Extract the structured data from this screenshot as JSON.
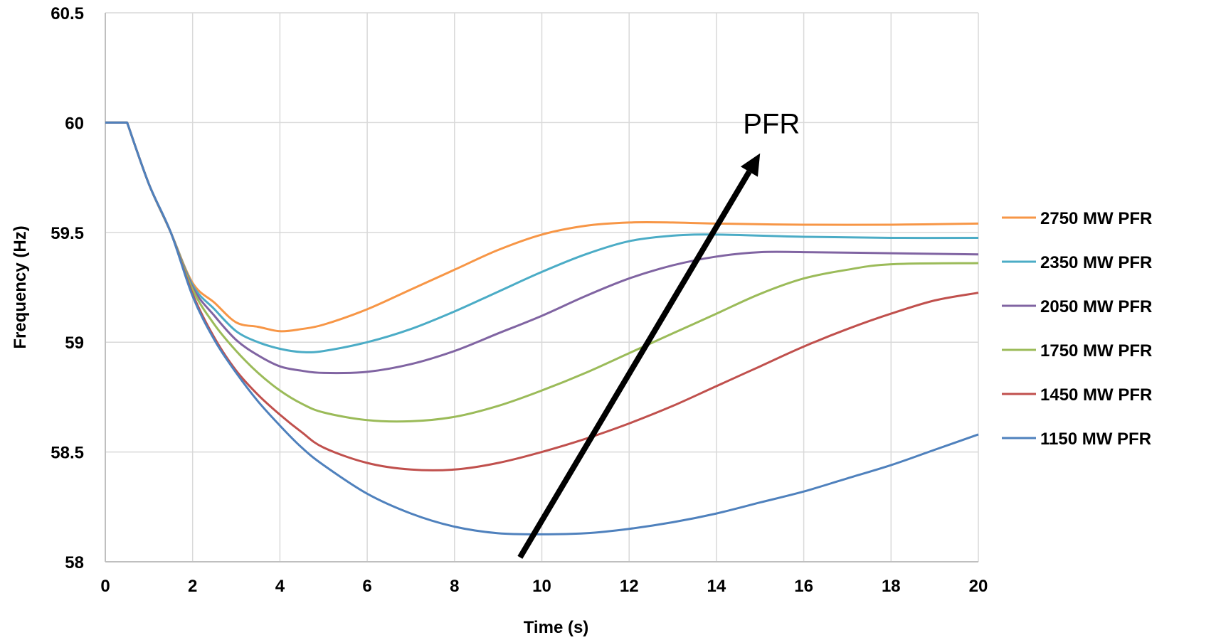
{
  "chart_data": {
    "type": "line",
    "title": "",
    "xlabel": "Time (s)",
    "ylabel": "Frequency (Hz)",
    "xlim": [
      0,
      20
    ],
    "ylim": [
      58,
      60.5
    ],
    "x_ticks": [
      "0",
      "2",
      "4",
      "6",
      "8",
      "10",
      "12",
      "14",
      "16",
      "18",
      "20"
    ],
    "y_ticks": [
      "58",
      "58.5",
      "59",
      "59.5",
      "60",
      "60.5"
    ],
    "grid": true,
    "legend_position": "right",
    "annotation": {
      "text": "PFR",
      "arrow_from": [
        9.5,
        58.02
      ],
      "arrow_to": [
        15.0,
        59.86
      ]
    },
    "series": [
      {
        "name": "2750 MW PFR",
        "color": "#F79646",
        "x": [
          0,
          0.5,
          1,
          1.5,
          2,
          2.5,
          3,
          3.5,
          4,
          4.5,
          5,
          6,
          7,
          8,
          9,
          10,
          11,
          12,
          13,
          14,
          16,
          18,
          20
        ],
        "y": [
          60,
          60,
          59.72,
          59.5,
          59.27,
          59.18,
          59.09,
          59.07,
          59.05,
          59.06,
          59.08,
          59.15,
          59.24,
          59.33,
          59.42,
          59.49,
          59.53,
          59.545,
          59.545,
          59.54,
          59.535,
          59.535,
          59.54
        ]
      },
      {
        "name": "2350 MW PFR",
        "color": "#4BACC6",
        "x": [
          0,
          0.5,
          1,
          1.5,
          2,
          2.5,
          3,
          3.5,
          4,
          4.5,
          5,
          6,
          7,
          8,
          9,
          10,
          11,
          12,
          13,
          14,
          16,
          18,
          20
        ],
        "y": [
          60,
          60,
          59.72,
          59.5,
          59.26,
          59.15,
          59.05,
          59.0,
          58.97,
          58.955,
          58.96,
          59.0,
          59.06,
          59.14,
          59.23,
          59.32,
          59.4,
          59.46,
          59.485,
          59.49,
          59.48,
          59.475,
          59.475
        ]
      },
      {
        "name": "2050 MW PFR",
        "color": "#8064A2",
        "x": [
          0,
          0.5,
          1,
          1.5,
          2,
          2.5,
          3,
          3.5,
          4,
          4.5,
          5,
          6,
          7,
          8,
          9,
          10,
          11,
          12,
          13,
          14,
          15,
          16,
          18,
          20
        ],
        "y": [
          60,
          60,
          59.72,
          59.5,
          59.25,
          59.12,
          59.01,
          58.94,
          58.89,
          58.87,
          58.86,
          58.865,
          58.9,
          58.96,
          59.04,
          59.12,
          59.21,
          59.29,
          59.35,
          59.39,
          59.41,
          59.41,
          59.405,
          59.4
        ]
      },
      {
        "name": "1750 MW PFR",
        "color": "#9BBB59",
        "x": [
          0,
          0.5,
          1,
          1.5,
          2,
          2.5,
          3,
          3.5,
          4,
          4.5,
          5,
          6,
          7,
          8,
          9,
          10,
          11,
          12,
          13,
          14,
          15,
          16,
          17,
          18,
          20
        ],
        "y": [
          60,
          60,
          59.72,
          59.5,
          59.24,
          59.08,
          58.96,
          58.86,
          58.78,
          58.72,
          58.68,
          58.645,
          58.64,
          58.66,
          58.71,
          58.78,
          58.86,
          58.95,
          59.04,
          59.13,
          59.22,
          59.29,
          59.33,
          59.355,
          59.36
        ]
      },
      {
        "name": "1450 MW PFR",
        "color": "#C0504D",
        "x": [
          0,
          0.5,
          1,
          1.5,
          2,
          2.5,
          3,
          3.5,
          4,
          4.5,
          5,
          6,
          7,
          8,
          9,
          10,
          11,
          12,
          13,
          14,
          15,
          16,
          17,
          18,
          19,
          20
        ],
        "y": [
          60,
          60,
          59.72,
          59.5,
          59.22,
          59.02,
          58.87,
          58.76,
          58.67,
          58.59,
          58.52,
          58.45,
          58.42,
          58.42,
          58.45,
          58.5,
          58.56,
          58.63,
          58.71,
          58.8,
          58.89,
          58.98,
          59.06,
          59.13,
          59.19,
          59.225
        ]
      },
      {
        "name": "1150 MW PFR",
        "color": "#4F81BD",
        "x": [
          0,
          0.5,
          1,
          1.5,
          2,
          2.5,
          3,
          3.5,
          4,
          4.5,
          5,
          6,
          7,
          8,
          9,
          10,
          11,
          12,
          13,
          14,
          15,
          16,
          17,
          18,
          19,
          20
        ],
        "y": [
          60,
          60,
          59.72,
          59.5,
          59.21,
          59.01,
          58.86,
          58.73,
          58.62,
          58.52,
          58.44,
          58.31,
          58.22,
          58.16,
          58.13,
          58.125,
          58.13,
          58.15,
          58.18,
          58.22,
          58.27,
          58.32,
          58.38,
          58.44,
          58.51,
          58.58
        ]
      }
    ]
  }
}
